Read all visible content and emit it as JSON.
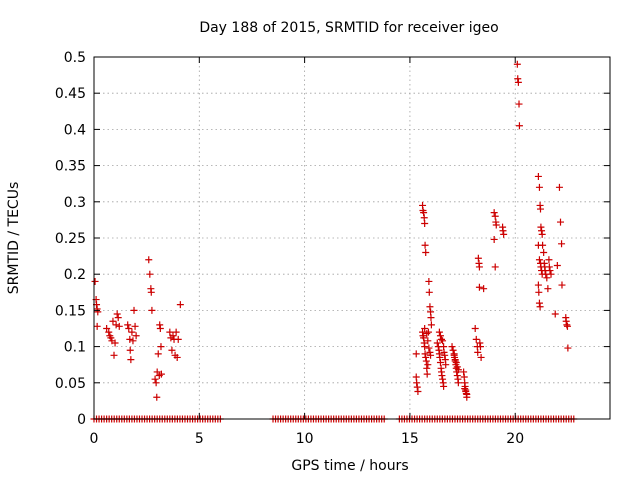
{
  "chart_data": {
    "type": "scatter",
    "title": "Day 188 of 2015, SRMTID for receiver igeo",
    "xlabel": "GPS time / hours",
    "ylabel": "SRMTID / TECUs",
    "xlim": [
      0,
      24.5
    ],
    "ylim": [
      0,
      0.5
    ],
    "xticks": [
      0,
      5,
      10,
      15,
      20
    ],
    "yticks": [
      0,
      0.05,
      0.1,
      0.15,
      0.2,
      0.25,
      0.3,
      0.35,
      0.4,
      0.45,
      0.5
    ],
    "xtick_labels": [
      "0",
      "5",
      "10",
      "15",
      "20"
    ],
    "ytick_labels": [
      "0",
      "0.05",
      "0.1",
      "0.15",
      "0.2",
      "0.25",
      "0.3",
      "0.35",
      "0.4",
      "0.45",
      "0.5"
    ],
    "grid": true,
    "marker": "+",
    "color": "#cc0000",
    "series": [
      {
        "name": "SRMTID",
        "points": [
          [
            0.05,
            0.19
          ],
          [
            0.1,
            0.165
          ],
          [
            0.12,
            0.158
          ],
          [
            0.15,
            0.152
          ],
          [
            0.18,
            0.148
          ],
          [
            0.15,
            0.128
          ],
          [
            0.6,
            0.125
          ],
          [
            0.7,
            0.12
          ],
          [
            0.75,
            0.115
          ],
          [
            0.8,
            0.112
          ],
          [
            0.85,
            0.108
          ],
          [
            0.9,
            0.135
          ],
          [
            0.95,
            0.088
          ],
          [
            1.0,
            0.105
          ],
          [
            1.05,
            0.13
          ],
          [
            1.1,
            0.145
          ],
          [
            1.15,
            0.14
          ],
          [
            1.2,
            0.128
          ],
          [
            1.6,
            0.13
          ],
          [
            1.65,
            0.125
          ],
          [
            1.7,
            0.11
          ],
          [
            1.72,
            0.095
          ],
          [
            1.75,
            0.082
          ],
          [
            1.8,
            0.12
          ],
          [
            1.85,
            0.108
          ],
          [
            1.9,
            0.15
          ],
          [
            1.95,
            0.128
          ],
          [
            2.0,
            0.115
          ],
          [
            2.6,
            0.22
          ],
          [
            2.65,
            0.2
          ],
          [
            2.7,
            0.18
          ],
          [
            2.72,
            0.175
          ],
          [
            2.75,
            0.15
          ],
          [
            2.9,
            0.055
          ],
          [
            2.95,
            0.05
          ],
          [
            2.98,
            0.03
          ],
          [
            3.0,
            0.065
          ],
          [
            3.05,
            0.09
          ],
          [
            3.1,
            0.06
          ],
          [
            3.12,
            0.13
          ],
          [
            3.15,
            0.125
          ],
          [
            3.18,
            0.1
          ],
          [
            3.2,
            0.062
          ],
          [
            3.6,
            0.12
          ],
          [
            3.65,
            0.112
          ],
          [
            3.7,
            0.095
          ],
          [
            3.75,
            0.115
          ],
          [
            3.8,
            0.11
          ],
          [
            3.85,
            0.088
          ],
          [
            3.9,
            0.12
          ],
          [
            3.95,
            0.085
          ],
          [
            4.0,
            0.11
          ],
          [
            4.1,
            0.158
          ],
          [
            15.3,
            0.09
          ],
          [
            15.3,
            0.058
          ],
          [
            15.32,
            0.05
          ],
          [
            15.35,
            0.044
          ],
          [
            15.38,
            0.038
          ],
          [
            15.6,
            0.295
          ],
          [
            15.62,
            0.288
          ],
          [
            15.65,
            0.285
          ],
          [
            15.68,
            0.278
          ],
          [
            15.7,
            0.27
          ],
          [
            15.72,
            0.24
          ],
          [
            15.75,
            0.23
          ],
          [
            15.6,
            0.12
          ],
          [
            15.62,
            0.115
          ],
          [
            15.65,
            0.112
          ],
          [
            15.68,
            0.105
          ],
          [
            15.7,
            0.1
          ],
          [
            15.72,
            0.09
          ],
          [
            15.75,
            0.085
          ],
          [
            15.78,
            0.08
          ],
          [
            15.8,
            0.07
          ],
          [
            15.82,
            0.062
          ],
          [
            15.85,
            0.075
          ],
          [
            15.88,
            0.12
          ],
          [
            15.9,
            0.19
          ],
          [
            15.92,
            0.175
          ],
          [
            15.95,
            0.155
          ],
          [
            15.98,
            0.148
          ],
          [
            16.0,
            0.14
          ],
          [
            16.02,
            0.13
          ],
          [
            15.7,
            0.125
          ],
          [
            15.8,
            0.118
          ],
          [
            15.85,
            0.108
          ],
          [
            15.9,
            0.098
          ],
          [
            15.95,
            0.092
          ],
          [
            15.98,
            0.088
          ],
          [
            16.3,
            0.105
          ],
          [
            16.35,
            0.1
          ],
          [
            16.38,
            0.095
          ],
          [
            16.4,
            0.09
          ],
          [
            16.42,
            0.085
          ],
          [
            16.45,
            0.078
          ],
          [
            16.48,
            0.07
          ],
          [
            16.5,
            0.065
          ],
          [
            16.52,
            0.06
          ],
          [
            16.55,
            0.055
          ],
          [
            16.58,
            0.05
          ],
          [
            16.6,
            0.045
          ],
          [
            16.4,
            0.12
          ],
          [
            16.45,
            0.115
          ],
          [
            16.5,
            0.11
          ],
          [
            16.55,
            0.108
          ],
          [
            16.6,
            0.1
          ],
          [
            16.62,
            0.092
          ],
          [
            16.65,
            0.088
          ],
          [
            16.68,
            0.082
          ],
          [
            16.7,
            0.075
          ],
          [
            17.0,
            0.1
          ],
          [
            17.05,
            0.095
          ],
          [
            17.1,
            0.09
          ],
          [
            17.12,
            0.085
          ],
          [
            17.15,
            0.08
          ],
          [
            17.18,
            0.075
          ],
          [
            17.2,
            0.07
          ],
          [
            17.22,
            0.065
          ],
          [
            17.25,
            0.06
          ],
          [
            17.28,
            0.055
          ],
          [
            17.3,
            0.05
          ],
          [
            17.1,
            0.088
          ],
          [
            17.15,
            0.082
          ],
          [
            17.2,
            0.078
          ],
          [
            17.25,
            0.072
          ],
          [
            17.3,
            0.068
          ],
          [
            17.55,
            0.065
          ],
          [
            17.58,
            0.058
          ],
          [
            17.6,
            0.05
          ],
          [
            17.62,
            0.045
          ],
          [
            17.65,
            0.04
          ],
          [
            17.68,
            0.035
          ],
          [
            17.7,
            0.03
          ],
          [
            17.6,
            0.042
          ],
          [
            17.65,
            0.038
          ],
          [
            17.7,
            0.034
          ],
          [
            18.1,
            0.125
          ],
          [
            18.15,
            0.11
          ],
          [
            18.2,
            0.1
          ],
          [
            18.22,
            0.092
          ],
          [
            18.25,
            0.222
          ],
          [
            18.28,
            0.215
          ],
          [
            18.3,
            0.21
          ],
          [
            18.32,
            0.105
          ],
          [
            18.35,
            0.1
          ],
          [
            18.38,
            0.085
          ],
          [
            18.3,
            0.182
          ],
          [
            18.5,
            0.18
          ],
          [
            19.0,
            0.285
          ],
          [
            19.05,
            0.28
          ],
          [
            19.08,
            0.272
          ],
          [
            19.1,
            0.268
          ],
          [
            19.0,
            0.248
          ],
          [
            19.05,
            0.21
          ],
          [
            19.4,
            0.265
          ],
          [
            19.42,
            0.26
          ],
          [
            19.45,
            0.255
          ],
          [
            20.1,
            0.49
          ],
          [
            20.12,
            0.47
          ],
          [
            20.15,
            0.465
          ],
          [
            20.18,
            0.435
          ],
          [
            20.2,
            0.405
          ],
          [
            21.1,
            0.335
          ],
          [
            21.15,
            0.32
          ],
          [
            21.18,
            0.295
          ],
          [
            21.2,
            0.29
          ],
          [
            21.22,
            0.265
          ],
          [
            21.25,
            0.26
          ],
          [
            21.28,
            0.255
          ],
          [
            21.1,
            0.24
          ],
          [
            21.15,
            0.22
          ],
          [
            21.2,
            0.215
          ],
          [
            21.22,
            0.21
          ],
          [
            21.25,
            0.205
          ],
          [
            21.28,
            0.2
          ],
          [
            21.1,
            0.185
          ],
          [
            21.12,
            0.175
          ],
          [
            21.15,
            0.16
          ],
          [
            21.18,
            0.155
          ],
          [
            21.3,
            0.24
          ],
          [
            21.35,
            0.23
          ],
          [
            21.38,
            0.215
          ],
          [
            21.4,
            0.21
          ],
          [
            21.42,
            0.205
          ],
          [
            21.45,
            0.2
          ],
          [
            21.5,
            0.195
          ],
          [
            21.55,
            0.18
          ],
          [
            21.6,
            0.22
          ],
          [
            21.62,
            0.21
          ],
          [
            21.65,
            0.205
          ],
          [
            21.7,
            0.2
          ],
          [
            21.9,
            0.145
          ],
          [
            22.0,
            0.212
          ],
          [
            22.1,
            0.32
          ],
          [
            22.15,
            0.272
          ],
          [
            22.2,
            0.242
          ],
          [
            22.22,
            0.185
          ],
          [
            22.4,
            0.14
          ],
          [
            22.42,
            0.135
          ],
          [
            22.45,
            0.13
          ],
          [
            22.48,
            0.128
          ],
          [
            22.5,
            0.098
          ]
        ],
        "zero_ranges": [
          [
            0,
            6.0
          ],
          [
            8.5,
            13.8
          ],
          [
            14.5,
            22.8
          ]
        ]
      }
    ]
  }
}
